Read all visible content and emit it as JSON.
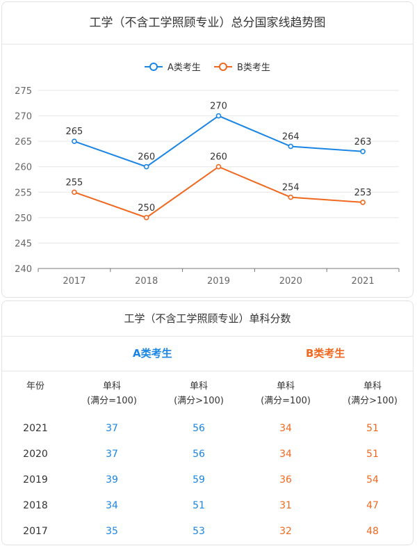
{
  "chart_data": {
    "type": "line",
    "title": "工学（不含工学照顾专业）总分国家线趋势图",
    "categories": [
      "2017",
      "2018",
      "2019",
      "2020",
      "2021"
    ],
    "series": [
      {
        "name": "A类考生",
        "color": "#1a85e5",
        "values": [
          265,
          260,
          270,
          264,
          263
        ]
      },
      {
        "name": "B类考生",
        "color": "#f0681f",
        "values": [
          255,
          250,
          260,
          254,
          253
        ]
      }
    ],
    "ylim": [
      240,
      275
    ],
    "yticks": [
      240,
      245,
      250,
      255,
      260,
      265,
      270,
      275
    ],
    "grid": true,
    "legend": "top-center"
  },
  "table": {
    "title": "工学（不含工学照顾专业）单科分数",
    "group_a": "A类考生",
    "group_b": "B类考生",
    "year_header": "年份",
    "col_headers": [
      {
        "line1": "单科",
        "line2": "(满分=100)"
      },
      {
        "line1": "单科",
        "line2": "(满分>100)"
      },
      {
        "line1": "单科",
        "line2": "(满分=100)"
      },
      {
        "line1": "单科",
        "line2": "(满分>100)"
      }
    ],
    "rows": [
      {
        "year": "2021",
        "values": [
          "37",
          "56",
          "34",
          "51"
        ]
      },
      {
        "year": "2020",
        "values": [
          "37",
          "56",
          "34",
          "51"
        ]
      },
      {
        "year": "2019",
        "values": [
          "39",
          "59",
          "36",
          "54"
        ]
      },
      {
        "year": "2018",
        "values": [
          "34",
          "51",
          "31",
          "47"
        ]
      },
      {
        "year": "2017",
        "values": [
          "35",
          "53",
          "32",
          "48"
        ]
      }
    ],
    "color_a": "#1a85e5",
    "color_b": "#f0681f"
  }
}
